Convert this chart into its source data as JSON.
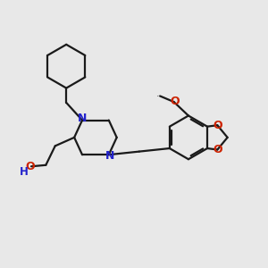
{
  "background_color": "#e8e8e8",
  "bond_color": "#1a1a1a",
  "nitrogen_color": "#2222cc",
  "oxygen_color": "#cc2200",
  "line_width": 1.6,
  "figsize": [
    3.0,
    3.0
  ],
  "dpi": 100,
  "xlim": [
    0,
    10
  ],
  "ylim": [
    0,
    10
  ]
}
